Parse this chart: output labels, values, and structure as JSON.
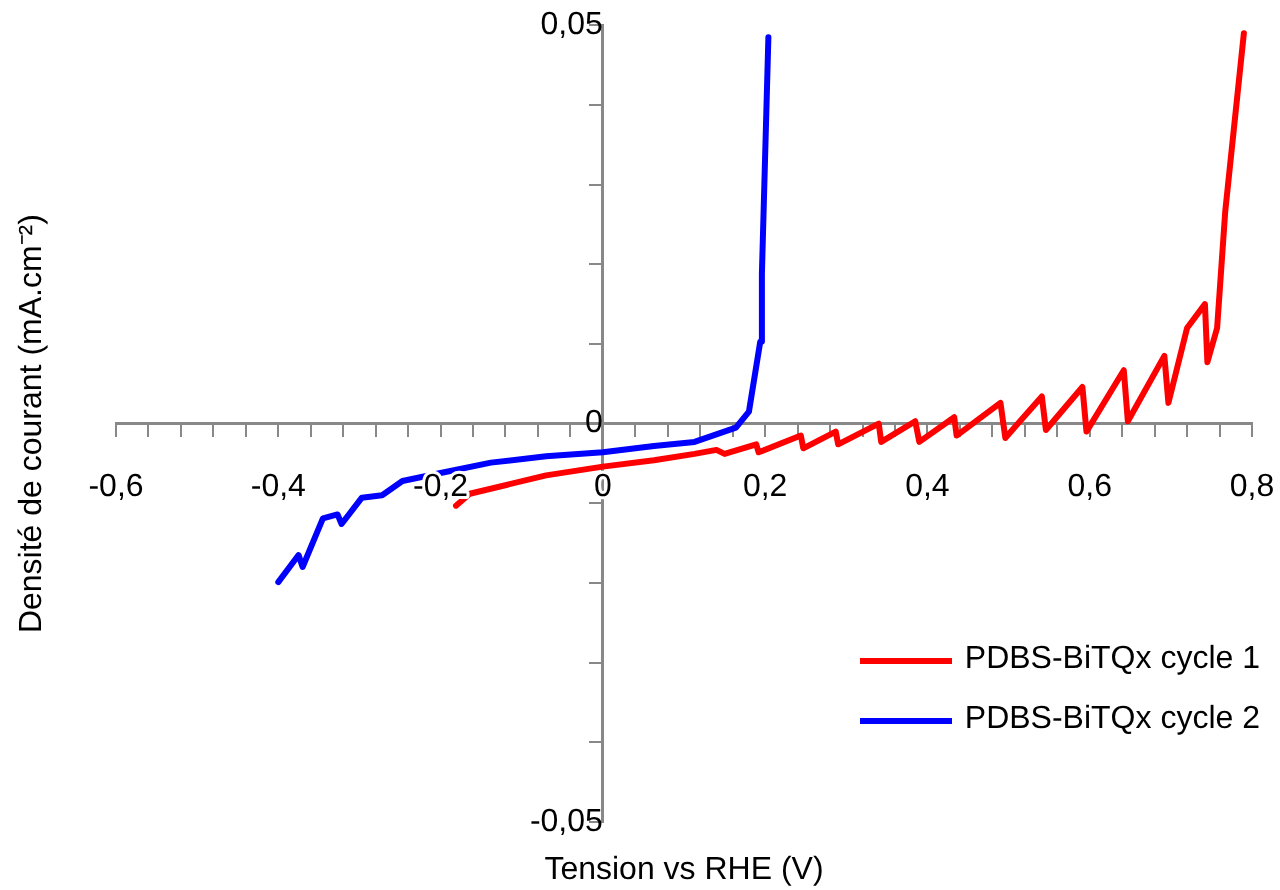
{
  "chart_data": {
    "type": "line",
    "xlabel": "Tension vs RHE (V)",
    "ylabel": "Densité de courant (mA.cm⁻²)",
    "xlim": [
      -0.6,
      0.8
    ],
    "ylim": [
      -0.05,
      0.05
    ],
    "xticks": [
      {
        "value": -0.6,
        "label": "-0,6"
      },
      {
        "value": -0.56,
        "label": null
      },
      {
        "value": -0.52,
        "label": null
      },
      {
        "value": -0.48,
        "label": null
      },
      {
        "value": -0.44,
        "label": null
      },
      {
        "value": -0.4,
        "label": "-0,4"
      },
      {
        "value": -0.36,
        "label": null
      },
      {
        "value": -0.32,
        "label": null
      },
      {
        "value": -0.28,
        "label": null
      },
      {
        "value": -0.24,
        "label": null
      },
      {
        "value": -0.2,
        "label": "-0,2"
      },
      {
        "value": -0.16,
        "label": null
      },
      {
        "value": -0.12,
        "label": null
      },
      {
        "value": -0.08,
        "label": null
      },
      {
        "value": -0.04,
        "label": null
      },
      {
        "value": 0,
        "label": "0"
      },
      {
        "value": 0.04,
        "label": null
      },
      {
        "value": 0.08,
        "label": null
      },
      {
        "value": 0.12,
        "label": null
      },
      {
        "value": 0.16,
        "label": null
      },
      {
        "value": 0.2,
        "label": "0,2"
      },
      {
        "value": 0.24,
        "label": null
      },
      {
        "value": 0.28,
        "label": null
      },
      {
        "value": 0.32,
        "label": null
      },
      {
        "value": 0.36,
        "label": null
      },
      {
        "value": 0.4,
        "label": "0,4"
      },
      {
        "value": 0.44,
        "label": null
      },
      {
        "value": 0.48,
        "label": null
      },
      {
        "value": 0.52,
        "label": null
      },
      {
        "value": 0.56,
        "label": null
      },
      {
        "value": 0.6,
        "label": "0,6"
      },
      {
        "value": 0.64,
        "label": null
      },
      {
        "value": 0.68,
        "label": null
      },
      {
        "value": 0.72,
        "label": null
      },
      {
        "value": 0.76,
        "label": null
      },
      {
        "value": 0.8,
        "label": "0,8"
      }
    ],
    "yticks": [
      {
        "value": -0.05,
        "label": "-0,05"
      },
      {
        "value": -0.04,
        "label": null
      },
      {
        "value": -0.03,
        "label": null
      },
      {
        "value": -0.02,
        "label": null
      },
      {
        "value": -0.01,
        "label": null
      },
      {
        "value": 0,
        "label": "0"
      },
      {
        "value": 0.01,
        "label": null
      },
      {
        "value": 0.02,
        "label": null
      },
      {
        "value": 0.03,
        "label": null
      },
      {
        "value": 0.04,
        "label": null
      },
      {
        "value": 0.05,
        "label": "0,05"
      }
    ],
    "grid": false,
    "legend": "bottom right",
    "marker": "none",
    "line_style": "solid",
    "series": [
      {
        "name": "PDBS-BiTQx cycle 1",
        "color": "#ff0000",
        "x": [
          -0.181,
          -0.164,
          -0.07,
          0,
          0.063,
          0.113,
          0.14,
          0.15,
          0.189,
          0.192,
          0.244,
          0.247,
          0.287,
          0.29,
          0.34,
          0.343,
          0.385,
          0.39,
          0.433,
          0.436,
          0.49,
          0.496,
          0.541,
          0.546,
          0.591,
          0.596,
          0.642,
          0.647,
          0.692,
          0.697,
          0.72,
          0.742,
          0.745,
          0.757,
          0.767,
          0.79
        ],
        "values": [
          -0.0103,
          -0.0088,
          -0.0065,
          -0.0054,
          -0.0046,
          -0.0038,
          -0.0033,
          -0.0038,
          -0.0026,
          -0.0036,
          -0.0015,
          -0.0031,
          -0.001,
          -0.0026,
          0.0,
          -0.0023,
          0.0003,
          -0.0023,
          0.0008,
          -0.0015,
          0.0026,
          -0.0018,
          0.0034,
          -0.0008,
          0.0046,
          -0.001,
          0.0067,
          0.0003,
          0.0085,
          0.0026,
          0.012,
          0.015,
          0.0077,
          0.012,
          0.0266,
          0.049
        ]
      },
      {
        "name": "PDBS-BiTQx cycle 2",
        "color": "#0000ff",
        "x": [
          -0.4,
          -0.375,
          -0.37,
          -0.345,
          -0.327,
          -0.322,
          -0.297,
          -0.272,
          -0.247,
          -0.2,
          -0.138,
          -0.07,
          0,
          0.063,
          0.113,
          0.164,
          0.18,
          0.194,
          0.196,
          0.204
        ],
        "values": [
          -0.0199,
          -0.0165,
          -0.018,
          -0.0119,
          -0.0114,
          -0.0126,
          -0.0093,
          -0.009,
          -0.0072,
          -0.0062,
          -0.0049,
          -0.0041,
          -0.0036,
          -0.0028,
          -0.0023,
          -0.0005,
          0.0015,
          0.0103,
          0.0188,
          0.0485
        ]
      }
    ]
  }
}
